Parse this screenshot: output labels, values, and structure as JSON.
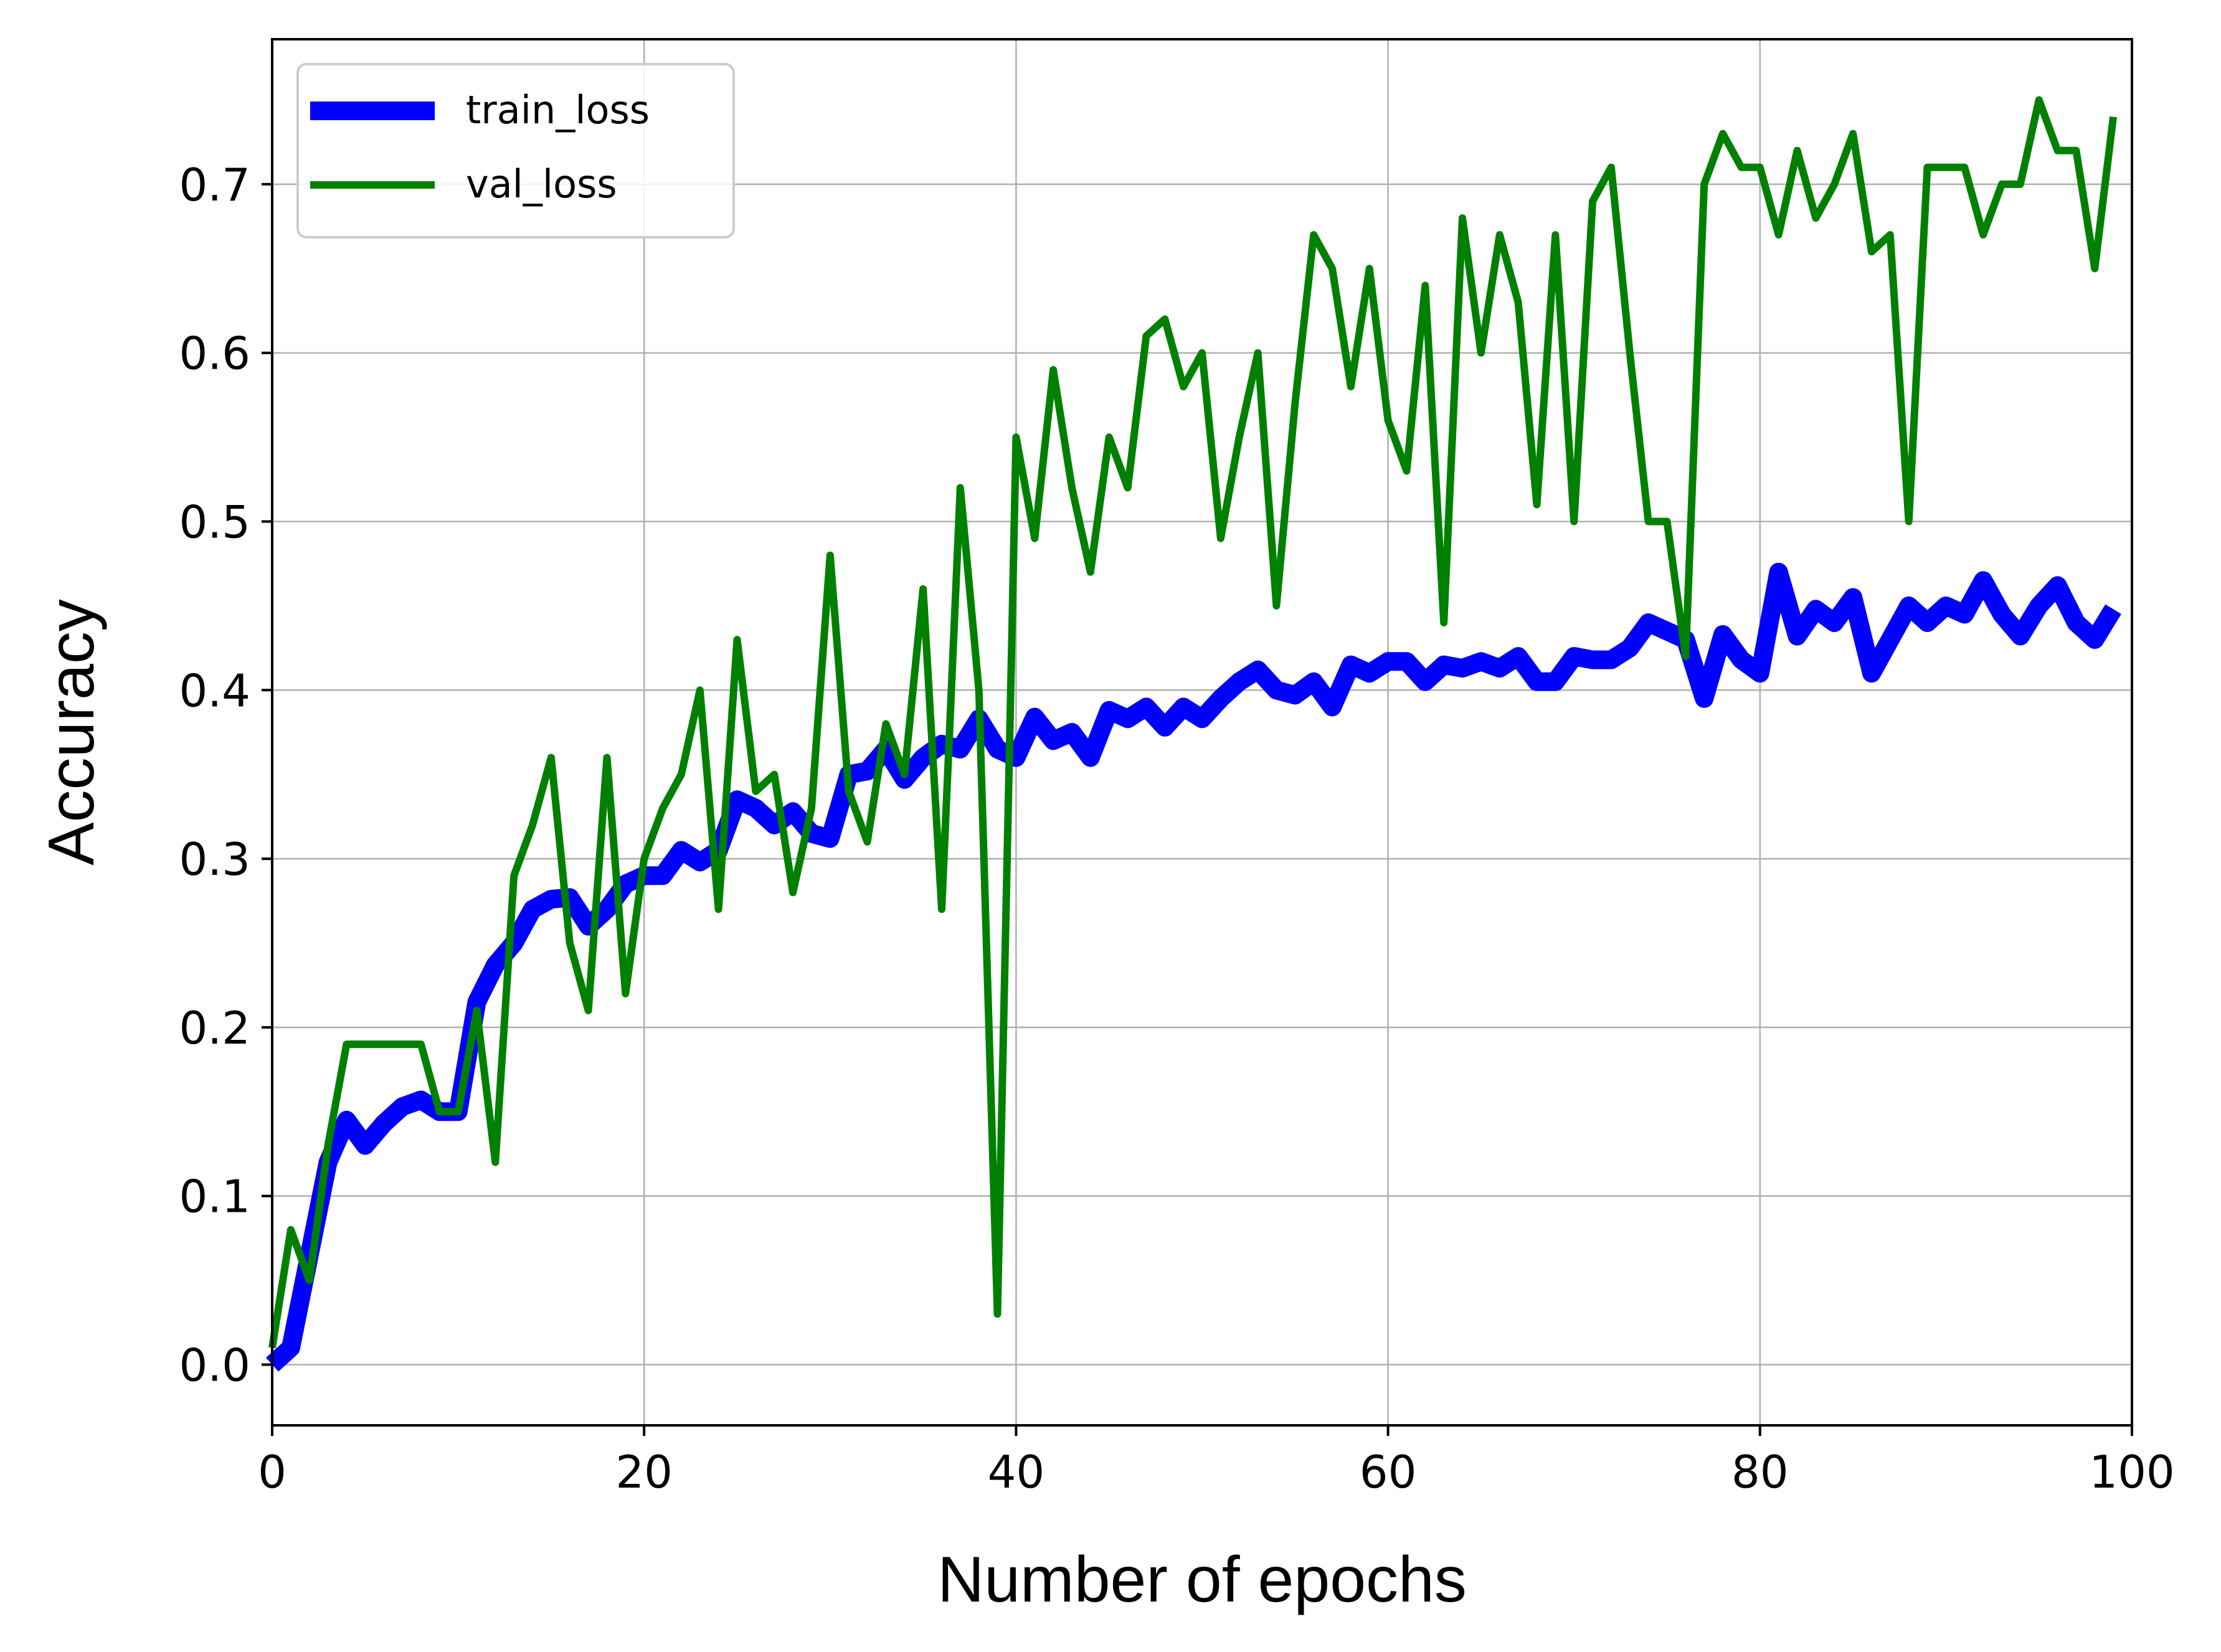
{
  "chart_data": {
    "type": "line",
    "title": "",
    "xlabel": "Number of epochs",
    "ylabel": "Accuracy",
    "xlim": [
      0,
      100
    ],
    "ylim": [
      -0.036,
      0.786
    ],
    "xticks": [
      0,
      20,
      40,
      60,
      80,
      100
    ],
    "yticks": [
      0.0,
      0.1,
      0.2,
      0.3,
      0.4,
      0.5,
      0.6,
      0.7
    ],
    "ytick_labels": [
      "0.0",
      "0.1",
      "0.2",
      "0.3",
      "0.4",
      "0.5",
      "0.6",
      "0.7"
    ],
    "xtick_labels": [
      "0",
      "20",
      "40",
      "60",
      "80",
      "100"
    ],
    "grid": true,
    "legend_position": "top-left",
    "series": [
      {
        "name": "train_loss",
        "color": "#0000ff",
        "x": [
          0,
          1,
          2,
          3,
          4,
          5,
          6,
          7,
          8,
          9,
          10,
          11,
          12,
          13,
          14,
          15,
          16,
          17,
          18,
          19,
          20,
          21,
          22,
          23,
          24,
          25,
          26,
          27,
          28,
          29,
          30,
          31,
          32,
          33,
          34,
          35,
          36,
          37,
          38,
          39,
          40,
          41,
          42,
          43,
          44,
          45,
          46,
          47,
          48,
          49,
          50,
          51,
          52,
          53,
          54,
          55,
          56,
          57,
          58,
          59,
          60,
          61,
          62,
          63,
          64,
          65,
          66,
          67,
          68,
          69,
          70,
          71,
          72,
          73,
          74,
          75,
          76,
          77,
          78,
          79,
          80,
          81,
          82,
          83,
          84,
          85,
          86,
          87,
          88,
          89,
          90,
          91,
          92,
          93,
          94,
          95,
          96,
          97,
          98,
          99
        ],
        "values": [
          0.0,
          0.01,
          0.065,
          0.12,
          0.145,
          0.13,
          0.143,
          0.153,
          0.157,
          0.15,
          0.15,
          0.215,
          0.237,
          0.25,
          0.27,
          0.276,
          0.277,
          0.26,
          0.27,
          0.285,
          0.29,
          0.29,
          0.305,
          0.298,
          0.305,
          0.335,
          0.33,
          0.32,
          0.328,
          0.315,
          0.312,
          0.35,
          0.352,
          0.365,
          0.347,
          0.36,
          0.368,
          0.365,
          0.383,
          0.365,
          0.36,
          0.384,
          0.37,
          0.375,
          0.36,
          0.388,
          0.383,
          0.39,
          0.378,
          0.39,
          0.383,
          0.395,
          0.405,
          0.412,
          0.4,
          0.397,
          0.405,
          0.39,
          0.415,
          0.41,
          0.417,
          0.417,
          0.405,
          0.415,
          0.413,
          0.417,
          0.413,
          0.42,
          0.405,
          0.405,
          0.42,
          0.418,
          0.418,
          0.425,
          0.44,
          0.435,
          0.43,
          0.395,
          0.433,
          0.418,
          0.41,
          0.47,
          0.432,
          0.448,
          0.44,
          0.455,
          0.41,
          0.43,
          0.45,
          0.44,
          0.45,
          0.445,
          0.465,
          0.445,
          0.432,
          0.45,
          0.462,
          0.44,
          0.43,
          0.448
        ]
      },
      {
        "name": "val_loss",
        "color": "#008000",
        "x": [
          0,
          1,
          2,
          3,
          4,
          5,
          6,
          7,
          8,
          9,
          10,
          11,
          12,
          13,
          14,
          15,
          16,
          17,
          18,
          19,
          20,
          21,
          22,
          23,
          24,
          25,
          26,
          27,
          28,
          29,
          30,
          31,
          32,
          33,
          34,
          35,
          36,
          37,
          38,
          39,
          40,
          41,
          42,
          43,
          44,
          45,
          46,
          47,
          48,
          49,
          50,
          51,
          52,
          53,
          54,
          55,
          56,
          57,
          58,
          59,
          60,
          61,
          62,
          63,
          64,
          65,
          66,
          67,
          68,
          69,
          70,
          71,
          72,
          73,
          74,
          75,
          76,
          77,
          78,
          79,
          80,
          81,
          82,
          83,
          84,
          85,
          86,
          87,
          88,
          89,
          90,
          91,
          92,
          93,
          94,
          95,
          96,
          97,
          98,
          99
        ],
        "values": [
          0.01,
          0.08,
          0.05,
          0.13,
          0.19,
          0.19,
          0.19,
          0.19,
          0.19,
          0.15,
          0.15,
          0.21,
          0.12,
          0.29,
          0.32,
          0.36,
          0.25,
          0.21,
          0.36,
          0.22,
          0.3,
          0.33,
          0.35,
          0.4,
          0.27,
          0.43,
          0.34,
          0.35,
          0.28,
          0.33,
          0.48,
          0.34,
          0.31,
          0.38,
          0.35,
          0.46,
          0.27,
          0.52,
          0.4,
          0.03,
          0.55,
          0.49,
          0.59,
          0.52,
          0.47,
          0.55,
          0.52,
          0.61,
          0.62,
          0.58,
          0.6,
          0.49,
          0.55,
          0.6,
          0.45,
          0.57,
          0.67,
          0.65,
          0.58,
          0.65,
          0.56,
          0.53,
          0.64,
          0.44,
          0.68,
          0.6,
          0.67,
          0.63,
          0.51,
          0.67,
          0.5,
          0.69,
          0.71,
          0.6,
          0.5,
          0.5,
          0.42,
          0.7,
          0.73,
          0.71,
          0.71,
          0.67,
          0.72,
          0.68,
          0.7,
          0.73,
          0.66,
          0.67,
          0.5,
          0.71,
          0.71,
          0.71,
          0.67,
          0.7,
          0.7,
          0.75,
          0.72,
          0.72,
          0.65,
          0.74
        ]
      }
    ]
  }
}
